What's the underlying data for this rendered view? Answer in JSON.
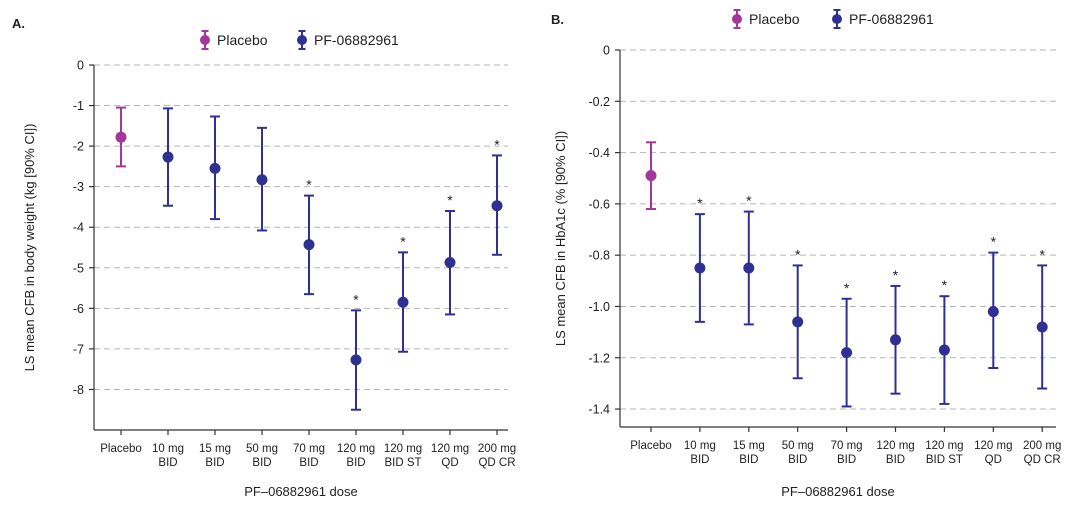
{
  "chart_data": [
    {
      "panel_label": "A.",
      "type": "errorbar",
      "legend": [
        {
          "name": "Placebo",
          "color": "#a4379a"
        },
        {
          "name": "PF-06882961",
          "color": "#2e3192"
        }
      ],
      "ylabel": "LS mean CFB in body weight (kg [90% CI])",
      "xlabel": "PF–06882961 dose",
      "ylim": [
        -9,
        0
      ],
      "yticks": [
        0,
        -1,
        -2,
        -3,
        -4,
        -5,
        -6,
        -7,
        -8
      ],
      "ytick_labels": [
        "0",
        "-1",
        "-2",
        "-3",
        "-4",
        "-5",
        "-6",
        "-7",
        "-8"
      ],
      "grid": true,
      "categories": [
        {
          "line1": "Placebo",
          "line2": ""
        },
        {
          "line1": "10 mg",
          "line2": "BID"
        },
        {
          "line1": "15 mg",
          "line2": "BID"
        },
        {
          "line1": "50 mg",
          "line2": "BID"
        },
        {
          "line1": "70 mg",
          "line2": "BID"
        },
        {
          "line1": "120 mg",
          "line2": "BID"
        },
        {
          "line1": "120 mg",
          "line2": "BID ST"
        },
        {
          "line1": "120 mg",
          "line2": "QD"
        },
        {
          "line1": "200 mg",
          "line2": "QD CR"
        }
      ],
      "points": [
        {
          "value": -1.78,
          "lower": -2.5,
          "upper": -1.05,
          "group": "Placebo",
          "sig": ""
        },
        {
          "value": -2.27,
          "lower": -3.47,
          "upper": -1.07,
          "group": "PF-06882961",
          "sig": ""
        },
        {
          "value": -2.55,
          "lower": -3.8,
          "upper": -1.27,
          "group": "PF-06882961",
          "sig": ""
        },
        {
          "value": -2.83,
          "lower": -4.08,
          "upper": -1.55,
          "group": "PF-06882961",
          "sig": ""
        },
        {
          "value": -4.43,
          "lower": -5.65,
          "upper": -3.22,
          "group": "PF-06882961",
          "sig": "*"
        },
        {
          "value": -7.27,
          "lower": -8.5,
          "upper": -6.05,
          "group": "PF-06882961",
          "sig": "*"
        },
        {
          "value": -5.85,
          "lower": -7.07,
          "upper": -4.62,
          "group": "PF-06882961",
          "sig": "*"
        },
        {
          "value": -4.87,
          "lower": -6.15,
          "upper": -3.6,
          "group": "PF-06882961",
          "sig": "*"
        },
        {
          "value": -3.47,
          "lower": -4.68,
          "upper": -2.23,
          "group": "PF-06882961",
          "sig": "*"
        }
      ]
    },
    {
      "panel_label": "B.",
      "type": "errorbar",
      "legend": [
        {
          "name": "Placebo",
          "color": "#a4379a"
        },
        {
          "name": "PF-06882961",
          "color": "#2e3192"
        }
      ],
      "ylabel": "LS mean CFB in HbA1c (% [90% CI])",
      "xlabel": "PF–06882961 dose",
      "ylim": [
        -1.47,
        0
      ],
      "yticks": [
        0,
        -0.2,
        -0.4,
        -0.6,
        -0.8,
        -1.0,
        -1.2,
        -1.4
      ],
      "ytick_labels": [
        "0",
        "-0.2",
        "-0.4",
        "-0.6",
        "-0.8",
        "-1.0",
        "-1.2",
        "-1.4"
      ],
      "grid": true,
      "categories": [
        {
          "line1": "Placebo",
          "line2": ""
        },
        {
          "line1": "10 mg",
          "line2": "BID"
        },
        {
          "line1": "15 mg",
          "line2": "BID"
        },
        {
          "line1": "50 mg",
          "line2": "BID"
        },
        {
          "line1": "70 mg",
          "line2": "BID"
        },
        {
          "line1": "120 mg",
          "line2": "BID"
        },
        {
          "line1": "120 mg",
          "line2": "BID ST"
        },
        {
          "line1": "120 mg",
          "line2": "QD"
        },
        {
          "line1": "200 mg",
          "line2": "QD CR"
        }
      ],
      "points": [
        {
          "value": -0.49,
          "lower": -0.62,
          "upper": -0.36,
          "group": "Placebo",
          "sig": ""
        },
        {
          "value": -0.85,
          "lower": -1.06,
          "upper": -0.64,
          "group": "PF-06882961",
          "sig": "*"
        },
        {
          "value": -0.85,
          "lower": -1.07,
          "upper": -0.63,
          "group": "PF-06882961",
          "sig": "*"
        },
        {
          "value": -1.06,
          "lower": -1.28,
          "upper": -0.84,
          "group": "PF-06882961",
          "sig": "*"
        },
        {
          "value": -1.18,
          "lower": -1.39,
          "upper": -0.97,
          "group": "PF-06882961",
          "sig": "*"
        },
        {
          "value": -1.13,
          "lower": -1.34,
          "upper": -0.92,
          "group": "PF-06882961",
          "sig": "*"
        },
        {
          "value": -1.17,
          "lower": -1.38,
          "upper": -0.96,
          "group": "PF-06882961",
          "sig": "*"
        },
        {
          "value": -1.02,
          "lower": -1.24,
          "upper": -0.79,
          "group": "PF-06882961",
          "sig": "*"
        },
        {
          "value": -1.08,
          "lower": -1.32,
          "upper": -0.84,
          "group": "PF-06882961",
          "sig": "*"
        }
      ]
    }
  ]
}
